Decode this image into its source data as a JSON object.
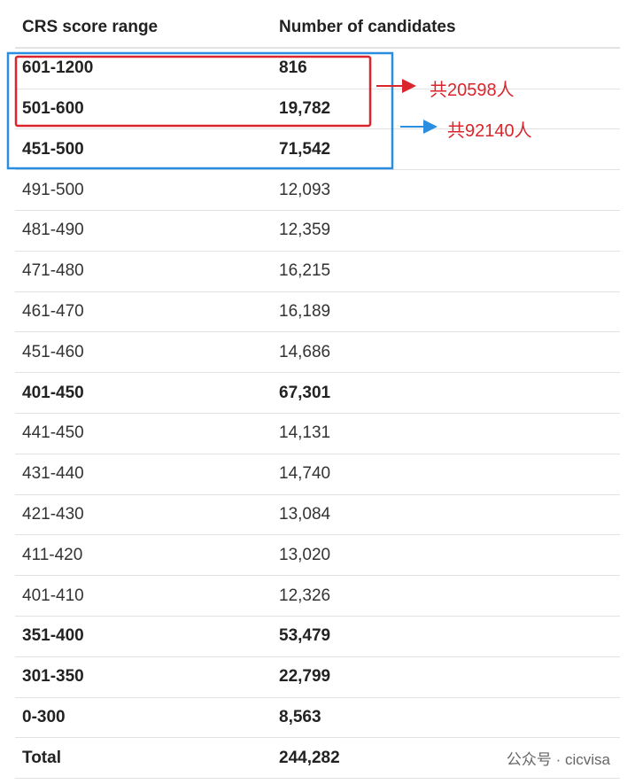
{
  "table": {
    "header": [
      "CRS score range",
      "Number of candidates"
    ],
    "rows": [
      [
        "601-1200",
        "816"
      ],
      [
        "501-600",
        "19,782"
      ],
      [
        "451-500",
        "71,542"
      ],
      [
        "491-500",
        "12,093"
      ],
      [
        "481-490",
        "12,359"
      ],
      [
        "471-480",
        "16,215"
      ],
      [
        "461-470",
        "16,189"
      ],
      [
        "451-460",
        "14,686"
      ],
      [
        "401-450",
        "67,301"
      ],
      [
        "441-450",
        "14,131"
      ],
      [
        "431-440",
        "14,740"
      ],
      [
        "421-430",
        "13,084"
      ],
      [
        "411-420",
        "13,020"
      ],
      [
        "401-410",
        "12,326"
      ],
      [
        "351-400",
        "53,479"
      ],
      [
        "301-350",
        "22,799"
      ],
      [
        "0-300",
        "8,563"
      ],
      [
        "Total",
        "244,282"
      ]
    ]
  },
  "annotations": [
    {
      "text": "共20598人"
    },
    {
      "text": "共92140人"
    }
  ],
  "watermark": "公众号 · cicvisa"
}
